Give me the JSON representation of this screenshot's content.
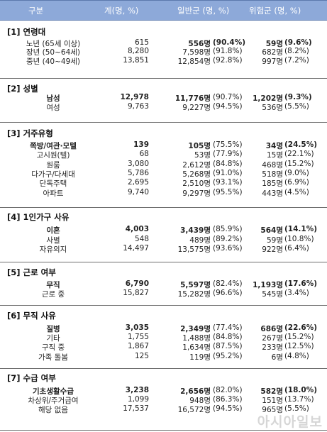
{
  "header": {
    "col0": "구분",
    "col1": "계(명, %)",
    "col2": "일반군 (명, %)",
    "col3": "위험군 (명, %)"
  },
  "sections": [
    {
      "title": "[1] 연령대",
      "rows": [
        {
          "label": "노년 (65세 이상)",
          "total": "615",
          "general": "556명",
          "general_pct": "(90.4%)",
          "risk": "59명",
          "risk_pct": "(9.6%)"
        },
        {
          "label": "장년 (50~64세)",
          "total": "8,280",
          "general": "7,598명",
          "general_pct": "(91.8%)",
          "risk": "682명",
          "risk_pct": "(8.2%)"
        },
        {
          "label": "중년 (40~49세)",
          "total": "13,851",
          "general": "12,854명",
          "general_pct": "(92.8%)",
          "risk": "997명",
          "risk_pct": "(7.2%)"
        }
      ]
    },
    {
      "title": "[2] 성별",
      "rows": [
        {
          "label": "남성",
          "total": "12,978",
          "general": "11,776명",
          "general_pct": "(90.7%)",
          "risk": "1,202명",
          "risk_pct": "(9.3%)"
        },
        {
          "label": "여성",
          "total": "9,763",
          "general": "9,227명",
          "general_pct": "(94.5%)",
          "risk": "536명",
          "risk_pct": "(5.5%)"
        }
      ]
    },
    {
      "title": "[3] 거주유형",
      "rows": [
        {
          "label": "쪽방/여관·모텔",
          "total": "139",
          "general": "105명",
          "general_pct": "(75.5%)",
          "risk": "34명",
          "risk_pct": "(24.5%)"
        },
        {
          "label": "고시원(텔)",
          "total": "68",
          "general": "53명",
          "general_pct": "(77.9%)",
          "risk": "15명",
          "risk_pct": "(22.1%)"
        },
        {
          "label": "원룸",
          "total": "3,080",
          "general": "2,612명",
          "general_pct": "(84.8%)",
          "risk": "468명",
          "risk_pct": "(15.2%)"
        },
        {
          "label": "다가구/다세대",
          "total": "5,786",
          "general": "5,268명",
          "general_pct": "(91.0%)",
          "risk": "518명",
          "risk_pct": "(9.0%)"
        },
        {
          "label": "단독주택",
          "total": "2,695",
          "general": "2,510명",
          "general_pct": "(93.1%)",
          "risk": "185명",
          "risk_pct": "(6.9%)"
        },
        {
          "label": "아파트",
          "total": "9,740",
          "general": "9,297명",
          "general_pct": "(95.5%)",
          "risk": "443명",
          "risk_pct": "(4.5%)"
        }
      ]
    },
    {
      "title": "[4] 1인가구 사유",
      "rows": [
        {
          "label": "이혼",
          "total": "4,003",
          "general": "3,439명",
          "general_pct": "(85.9%)",
          "risk": "564명",
          "risk_pct": "(14.1%)"
        },
        {
          "label": "사별",
          "total": "548",
          "general": "489명",
          "general_pct": "(89.2%)",
          "risk": "59명",
          "risk_pct": "(10.8%)"
        },
        {
          "label": "자유의지",
          "total": "14,497",
          "general": "13,575명",
          "general_pct": "(93.6%)",
          "risk": "922명",
          "risk_pct": "(6.4%)"
        }
      ]
    },
    {
      "title": "[5] 근로 여부",
      "rows": [
        {
          "label": "무직",
          "total": "6,790",
          "general": "5,597명",
          "general_pct": "(82.4%)",
          "risk": "1,193명",
          "risk_pct": "(17.6%)"
        },
        {
          "label": "근로 중",
          "total": "15,827",
          "general": "15,282명",
          "general_pct": "(96.6%)",
          "risk": "545명",
          "risk_pct": "(3.4%)"
        }
      ]
    },
    {
      "title": "[6] 무직 사유",
      "rows": [
        {
          "label": "질병",
          "total": "3,035",
          "general": "2,349명",
          "general_pct": "(77.4%)",
          "risk": "686명",
          "risk_pct": "(22.6%)"
        },
        {
          "label": "기타",
          "total": "1,755",
          "general": "1,488명",
          "general_pct": "(84.8%)",
          "risk": "267명",
          "risk_pct": "(15.2%)"
        },
        {
          "label": "구직 중",
          "total": "1,867",
          "general": "1,634명",
          "general_pct": "(87.5%)",
          "risk": "233명",
          "risk_pct": "(12.5%)"
        },
        {
          "label": "가족 돌봄",
          "total": "125",
          "general": "119명",
          "general_pct": "(95.2%)",
          "risk": "6명",
          "risk_pct": "(4.8%)"
        }
      ]
    },
    {
      "title": "[7] 수급 여부",
      "rows": [
        {
          "label": "기초생활수급",
          "total": "3,238",
          "general": "2,656명",
          "general_pct": "(82.0%)",
          "risk": "582명",
          "risk_pct": "(18.0%)"
        },
        {
          "label": "차상위/주거급여",
          "total": "1,099",
          "general": "948명",
          "general_pct": "(86.3%)",
          "risk": "151명",
          "risk_pct": "(13.7%)"
        },
        {
          "label": "해당 없음",
          "total": "17,537",
          "general": "16,572명",
          "general_pct": "(94.5%)",
          "risk": "965명",
          "risk_pct": "(5.5%)"
        }
      ]
    }
  ],
  "watermark": "아시아일보"
}
